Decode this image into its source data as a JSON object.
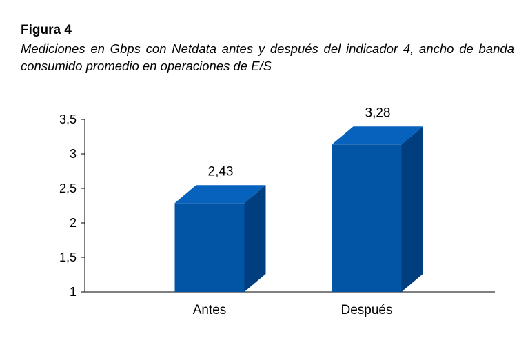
{
  "figure": {
    "label": "Figura 4",
    "caption": "Mediciones en Gbps con Netdata antes y después del indicador 4, ancho de banda consumido promedio en operaciones de E/S"
  },
  "chart_data": {
    "type": "bar",
    "style": "3d",
    "categories": [
      "Antes",
      "Después"
    ],
    "values": [
      2.43,
      3.28
    ],
    "value_labels": [
      "2,43",
      "3,28"
    ],
    "ylim": [
      1,
      3.5
    ],
    "yticks": [
      1,
      1.5,
      2,
      2.5,
      3,
      3.5
    ],
    "ytick_labels": [
      "1",
      "1,5",
      "2",
      "2,5",
      "3",
      "3,5"
    ],
    "xlabel": "",
    "ylabel": "",
    "title": "",
    "grid": false,
    "legend": false,
    "colors": {
      "bar_front": "#0254A5",
      "bar_top": "#0762BD",
      "bar_side": "#003E80"
    }
  }
}
